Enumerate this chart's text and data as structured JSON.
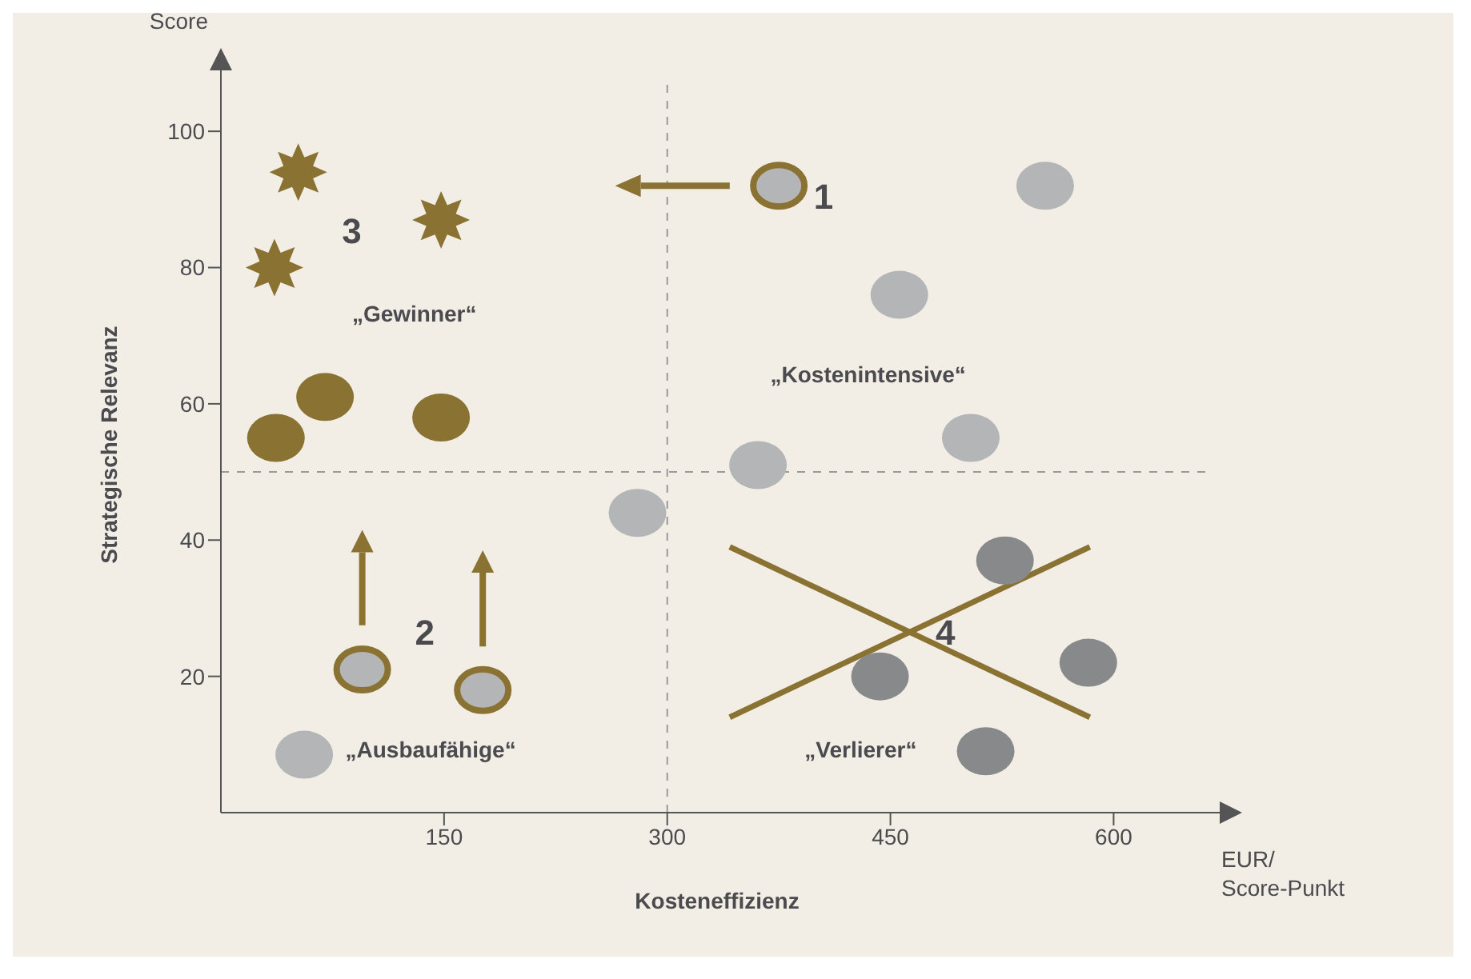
{
  "chart_data": {
    "type": "scatter",
    "xlabel": "Kosteneffizienz",
    "ylabel": "Strategische Relevanz",
    "xlim": [
      0,
      667
    ],
    "ylim": [
      0,
      108
    ],
    "xticks": [
      150,
      300,
      450,
      600
    ],
    "yticks": [
      20,
      40,
      60,
      80,
      100
    ],
    "grid": false,
    "legend": false,
    "series": [
      {
        "color": "#8a7232",
        "marker": "star",
        "x": [
          52,
          148,
          36
        ],
        "values": [
          94,
          87,
          80
        ]
      },
      {
        "color": "#8a7232",
        "marker": "circle",
        "x": [
          70,
          37,
          148
        ],
        "values": [
          61,
          55,
          58
        ]
      },
      {
        "color": "#8a7232",
        "marker": "circle",
        "x": [
          375,
          95,
          176
        ],
        "values": [
          92,
          21,
          18
        ]
      },
      {
        "color": "#b4b5b7",
        "marker": "circle",
        "x": [
          554,
          456,
          361,
          504,
          280,
          56
        ],
        "values": [
          92,
          76,
          51,
          55,
          44,
          8.5
        ]
      },
      {
        "color": "#88898b",
        "marker": "circle",
        "x": [
          527,
          443,
          583,
          514
        ],
        "values": [
          37,
          20,
          22,
          9
        ]
      },
      {
        "type": "line",
        "color": "#8a7232",
        "marker": "none",
        "x": [
          342,
          584
        ],
        "values": [
          39,
          14
        ]
      },
      {
        "type": "line",
        "color": "#8a7232",
        "marker": "none",
        "x": [
          342,
          584
        ],
        "values": [
          14,
          39
        ]
      }
    ],
    "ref_lines": [
      {
        "axis": "x",
        "value": 300,
        "line_style": "dashed",
        "color": "#9a9a9a"
      },
      {
        "axis": "y",
        "value": 50,
        "line_style": "dashed",
        "color": "#9a9a9a"
      }
    ],
    "annotations": [
      "Score",
      "EUR/\nScore-Punkt",
      "1",
      "2",
      "3",
      "4",
      "„Gewinner“",
      "„Kostenintensive“",
      "„Ausbaufähige“",
      "„Verlierer“"
    ]
  }
}
